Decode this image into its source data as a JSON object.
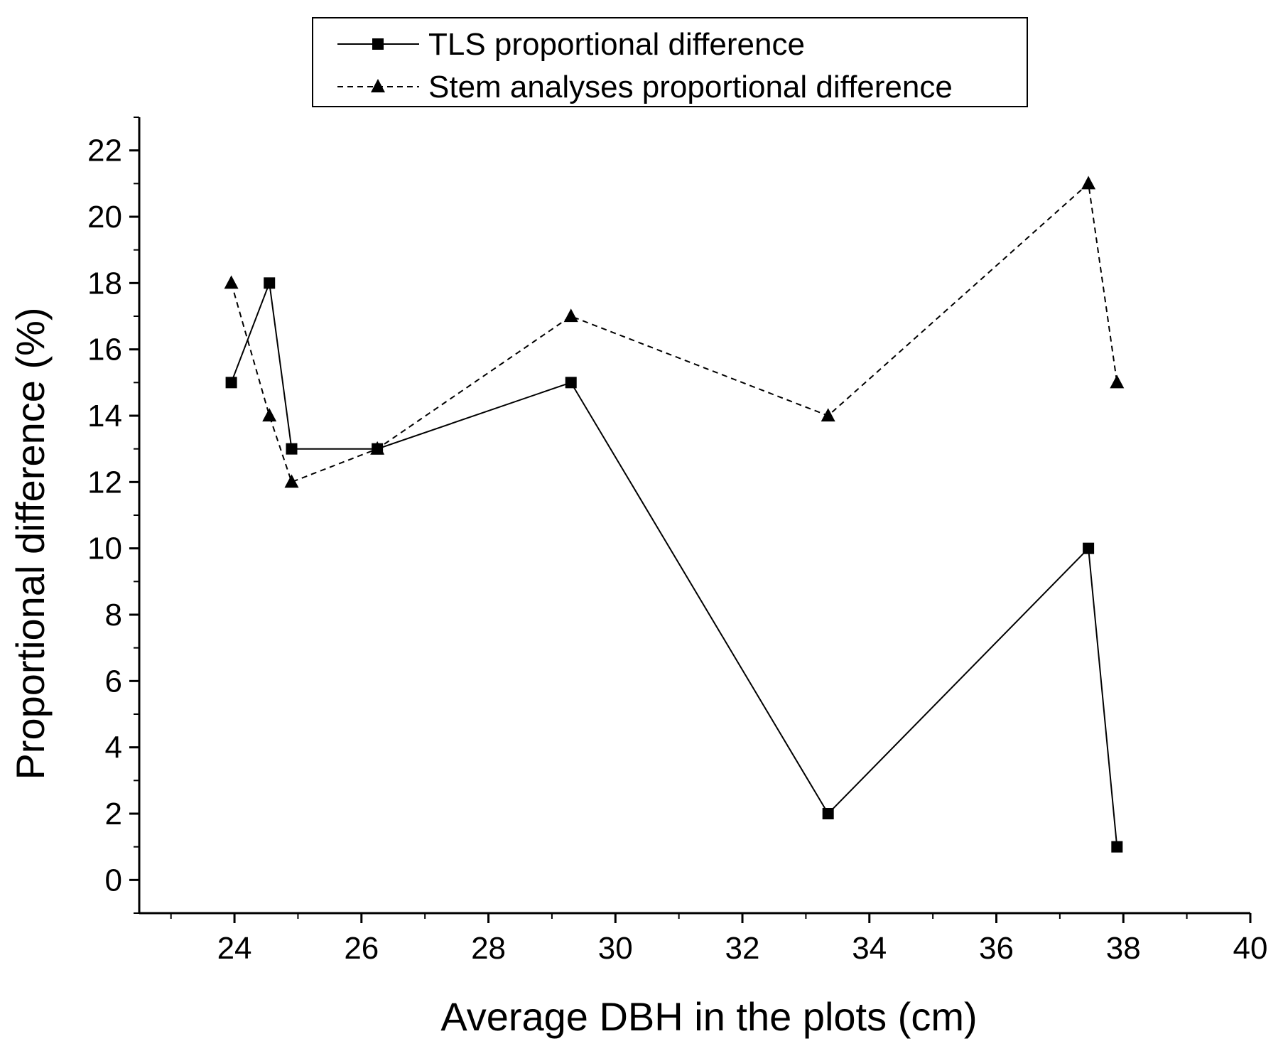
{
  "chart_data": {
    "type": "line",
    "title": "",
    "xlabel": "Average DBH in the plots (cm)",
    "ylabel": "Proportional difference (%)",
    "xlim": [
      22.5,
      40
    ],
    "ylim": [
      -1,
      23
    ],
    "xticks": [
      24,
      26,
      28,
      30,
      32,
      34,
      36,
      38,
      40
    ],
    "yticks": [
      0,
      2,
      4,
      6,
      8,
      10,
      12,
      14,
      16,
      18,
      20,
      22
    ],
    "xtick_labels": [
      "24",
      "26",
      "28",
      "30",
      "32",
      "34",
      "36",
      "38",
      "40"
    ],
    "ytick_labels": [
      "0",
      "2",
      "4",
      "6",
      "8",
      "10",
      "12",
      "14",
      "16",
      "18",
      "20",
      "22"
    ],
    "grid": false,
    "legend_position": "top-center",
    "series": [
      {
        "name": "TLS proportional difference",
        "marker": "square",
        "line_style": "solid",
        "color": "#000000",
        "x": [
          23.95,
          24.55,
          24.9,
          26.25,
          29.3,
          33.35,
          37.45,
          37.9
        ],
        "y": [
          15,
          18,
          13,
          13,
          15,
          2,
          10,
          1
        ]
      },
      {
        "name": "Stem analyses proportional difference",
        "marker": "triangle",
        "line_style": "dashed",
        "color": "#000000",
        "x": [
          23.95,
          24.55,
          24.9,
          26.25,
          29.3,
          33.35,
          37.45,
          37.9
        ],
        "y": [
          18,
          14,
          12,
          13,
          17,
          14,
          21,
          15
        ]
      }
    ]
  }
}
